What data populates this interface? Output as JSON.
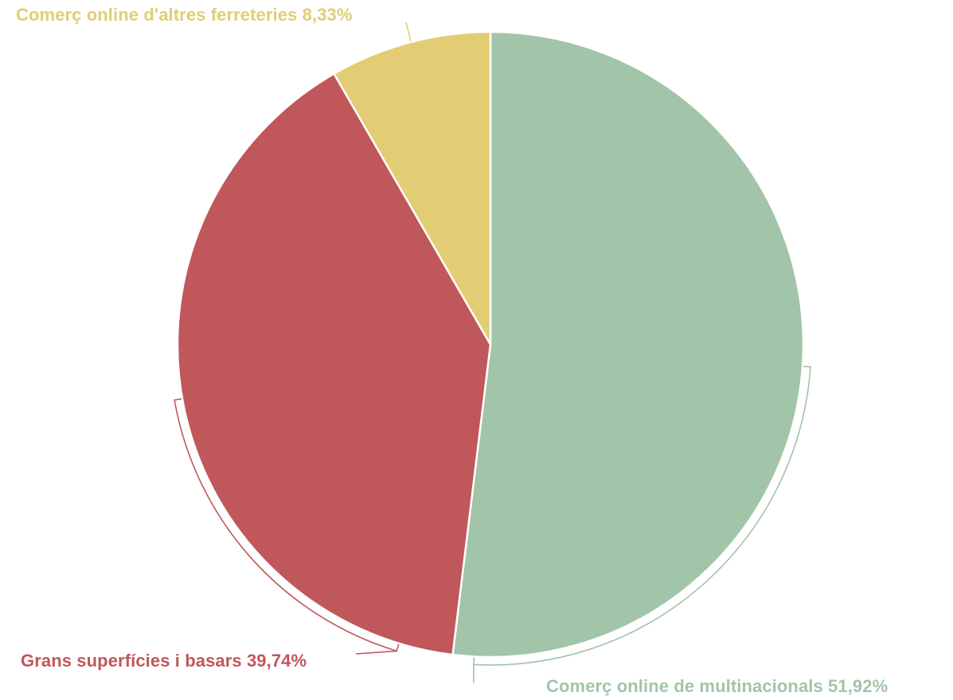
{
  "chart_data": {
    "type": "pie",
    "title": "",
    "start_angle_deg": 0,
    "direction": "clockwise",
    "slices": [
      {
        "label": "Comerç online de multinacionals",
        "value": 51.92,
        "display": "Comerç online de multinacionals 51,92%",
        "color": "#a2c4a8"
      },
      {
        "label": "Grans superfícies i basars",
        "value": 39.74,
        "display": "Grans superfícies i basars 39,74%",
        "color": "#c0575b"
      },
      {
        "label": "Comerç online d'altres ferreteries",
        "value": 8.33,
        "display": "Comerç online d'altres ferreteries 8,33%",
        "color": "#e2cd74"
      }
    ],
    "legend": "none",
    "label_placement": "outside"
  }
}
